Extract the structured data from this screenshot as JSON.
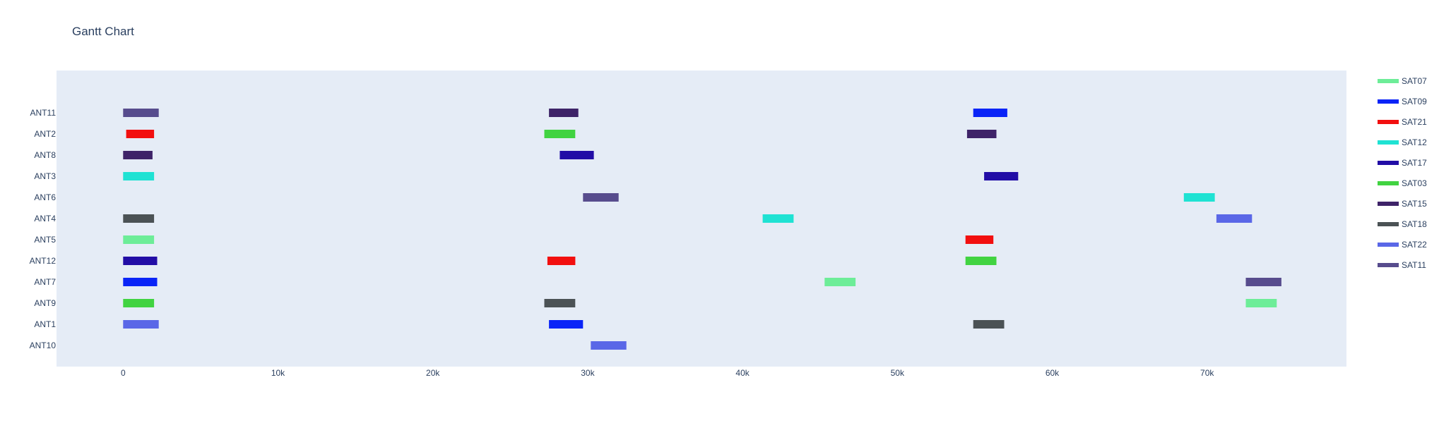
{
  "chart_data": {
    "type": "gantt",
    "title": "Gantt Chart",
    "xlabel": "",
    "ylabel": "",
    "xlim": [
      -4300,
      79000
    ],
    "x_ticks": [
      {
        "value": 0,
        "label": "0"
      },
      {
        "value": 10000,
        "label": "10k"
      },
      {
        "value": 20000,
        "label": "20k"
      },
      {
        "value": 30000,
        "label": "30k"
      },
      {
        "value": 40000,
        "label": "40k"
      },
      {
        "value": 50000,
        "label": "50k"
      },
      {
        "value": 60000,
        "label": "60k"
      },
      {
        "value": 70000,
        "label": "70k"
      }
    ],
    "grid": false,
    "legend_position": "right",
    "categories": [
      "ANT11",
      "ANT2",
      "ANT8",
      "ANT3",
      "ANT6",
      "ANT4",
      "ANT5",
      "ANT12",
      "ANT7",
      "ANT9",
      "ANT1",
      "ANT10"
    ],
    "series": [
      {
        "name": "SAT07",
        "color": "#6ded98",
        "tasks": [
          {
            "resource": "ANT5",
            "start": 0,
            "end": 2000
          },
          {
            "resource": "ANT7",
            "start": 45300,
            "end": 47300
          },
          {
            "resource": "ANT9",
            "start": 72500,
            "end": 74500
          }
        ]
      },
      {
        "name": "SAT09",
        "color": "#0a24f7",
        "tasks": [
          {
            "resource": "ANT11",
            "start": 54900,
            "end": 57100
          },
          {
            "resource": "ANT7",
            "start": 0,
            "end": 2200
          },
          {
            "resource": "ANT1",
            "start": 27500,
            "end": 29700
          }
        ]
      },
      {
        "name": "SAT21",
        "color": "#f20f0f",
        "tasks": [
          {
            "resource": "ANT2",
            "start": 200,
            "end": 2000
          },
          {
            "resource": "ANT5",
            "start": 54400,
            "end": 56200
          },
          {
            "resource": "ANT12",
            "start": 27400,
            "end": 29200
          }
        ]
      },
      {
        "name": "SAT12",
        "color": "#1fe2d3",
        "tasks": [
          {
            "resource": "ANT3",
            "start": 0,
            "end": 2000
          },
          {
            "resource": "ANT6",
            "start": 68500,
            "end": 70500
          },
          {
            "resource": "ANT4",
            "start": 41300,
            "end": 43300
          }
        ]
      },
      {
        "name": "SAT17",
        "color": "#220da6",
        "tasks": [
          {
            "resource": "ANT8",
            "start": 28200,
            "end": 30400
          },
          {
            "resource": "ANT3",
            "start": 55600,
            "end": 57800
          },
          {
            "resource": "ANT12",
            "start": 0,
            "end": 2200
          }
        ]
      },
      {
        "name": "SAT03",
        "color": "#41d341",
        "tasks": [
          {
            "resource": "ANT2",
            "start": 27200,
            "end": 29200
          },
          {
            "resource": "ANT12",
            "start": 54400,
            "end": 56400
          },
          {
            "resource": "ANT9",
            "start": 0,
            "end": 2000
          }
        ]
      },
      {
        "name": "SAT15",
        "color": "#3e2368",
        "tasks": [
          {
            "resource": "ANT11",
            "start": 27500,
            "end": 29400
          },
          {
            "resource": "ANT2",
            "start": 54500,
            "end": 56400
          },
          {
            "resource": "ANT8",
            "start": 0,
            "end": 1900
          }
        ]
      },
      {
        "name": "SAT18",
        "color": "#4b5255",
        "tasks": [
          {
            "resource": "ANT4",
            "start": 0,
            "end": 2000
          },
          {
            "resource": "ANT9",
            "start": 27200,
            "end": 29200
          },
          {
            "resource": "ANT1",
            "start": 54900,
            "end": 56900
          }
        ]
      },
      {
        "name": "SAT22",
        "color": "#5a67e7",
        "tasks": [
          {
            "resource": "ANT4",
            "start": 70600,
            "end": 72900
          },
          {
            "resource": "ANT1",
            "start": 0,
            "end": 2300
          },
          {
            "resource": "ANT10",
            "start": 30200,
            "end": 32500
          }
        ]
      },
      {
        "name": "SAT11",
        "color": "#574c8d",
        "tasks": [
          {
            "resource": "ANT11",
            "start": 0,
            "end": 2300
          },
          {
            "resource": "ANT6",
            "start": 29700,
            "end": 32000
          },
          {
            "resource": "ANT7",
            "start": 72500,
            "end": 74800
          }
        ]
      }
    ]
  }
}
